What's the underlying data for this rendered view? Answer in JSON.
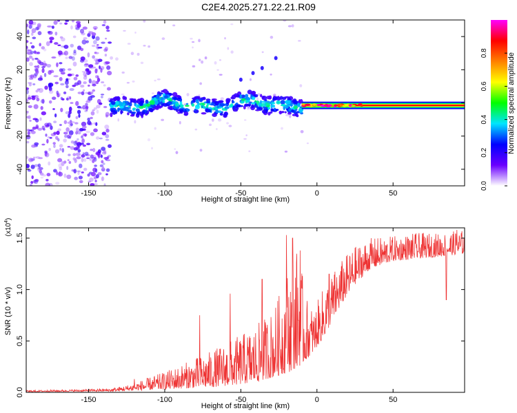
{
  "title": "C2E4.2025.271.22.21.R09",
  "chart_data": [
    {
      "type": "heatmap",
      "xlabel": "Height of straight line (km)",
      "ylabel": "Frequency (Hz)",
      "xlim": [
        -191,
        97
      ],
      "ylim": [
        -50,
        50
      ],
      "xticks": [
        -150,
        -100,
        -50,
        0,
        50
      ],
      "yticks": [
        -40,
        -20,
        0,
        20,
        40
      ],
      "grid": false,
      "colorbar": {
        "label": "Normalized spectral amplitude",
        "range": [
          0,
          1
        ],
        "ticks": [
          "0.0",
          "0.2",
          "0.4",
          "0.6",
          "0.8"
        ],
        "colormap": [
          "#ffffff",
          "#6a00ff",
          "#0000ff",
          "#00e5ff",
          "#00ff00",
          "#ffff00",
          "#ff8000",
          "#ff0000",
          "#ff00ff"
        ]
      },
      "regions": [
        {
          "x_range": [
            -191,
            -136
          ],
          "freq_range": [
            -50,
            50
          ],
          "amplitude": [
            0.05,
            0.2
          ]
        },
        {
          "x_range": [
            -136,
            -10
          ],
          "freq_center": -1,
          "freq_width": 10,
          "amplitude": [
            0.15,
            0.5
          ]
        },
        {
          "x_range": [
            -10,
            97
          ],
          "freq_center": -1.5,
          "freq_width": 3,
          "amplitude": [
            0.6,
            1.0
          ]
        }
      ],
      "feature_points": [
        {
          "x": -50,
          "freq": 14
        },
        {
          "x": -42,
          "freq": 18
        },
        {
          "x": -36,
          "freq": 21
        },
        {
          "x": -27,
          "freq": 27
        }
      ]
    },
    {
      "type": "line",
      "xlabel": "Height of straight line (km)",
      "ylabel": "SNR (10 * v/v)",
      "y_multiplier": "(x10^4)",
      "xlim": [
        -191,
        97
      ],
      "ylim": [
        0,
        1.6
      ],
      "xticks": [
        -150,
        -100,
        -50,
        0,
        50
      ],
      "yticks": [
        "0.0",
        "0.5",
        "1.0",
        "1.5"
      ],
      "color": "#ee3333",
      "grid": false,
      "envelope": {
        "x": [
          -191,
          -150,
          -135,
          -125,
          -115,
          -100,
          -85,
          -70,
          -55,
          -40,
          -28,
          -18,
          -12,
          -8,
          -2,
          5,
          12,
          18,
          25,
          35,
          50,
          65,
          80,
          97
        ],
        "y": [
          0.02,
          0.03,
          0.04,
          0.07,
          0.12,
          0.2,
          0.3,
          0.4,
          0.52,
          0.65,
          0.82,
          1.25,
          1.45,
          0.95,
          0.8,
          1.05,
          1.2,
          1.32,
          1.42,
          1.5,
          1.52,
          1.55,
          1.55,
          1.58
        ]
      },
      "floor": {
        "x": [
          -191,
          -150,
          -135,
          -125,
          -115,
          -100,
          -85,
          -70,
          -55,
          -40,
          -28,
          -18,
          -12,
          -8,
          -2,
          5,
          12,
          18,
          25,
          35,
          50,
          65,
          80,
          97
        ],
        "y": [
          0.005,
          0.01,
          0.01,
          0.015,
          0.02,
          0.03,
          0.04,
          0.05,
          0.07,
          0.1,
          0.15,
          0.2,
          0.25,
          0.3,
          0.4,
          0.55,
          0.75,
          0.9,
          1.05,
          1.2,
          1.28,
          1.3,
          1.32,
          1.35
        ]
      },
      "peaks": [
        {
          "x": -120,
          "y": 0.13
        },
        {
          "x": -77,
          "y": 0.75
        },
        {
          "x": -57,
          "y": 0.96
        },
        {
          "x": -36,
          "y": 1.1
        },
        {
          "x": -20,
          "y": 1.53
        },
        {
          "x": -16,
          "y": 1.5
        },
        {
          "x": -11,
          "y": 1.38
        },
        {
          "x": 8,
          "y": 1.15
        },
        {
          "x": 85,
          "y": 0.9
        },
        {
          "x": 92,
          "y": 1.58
        }
      ]
    }
  ]
}
